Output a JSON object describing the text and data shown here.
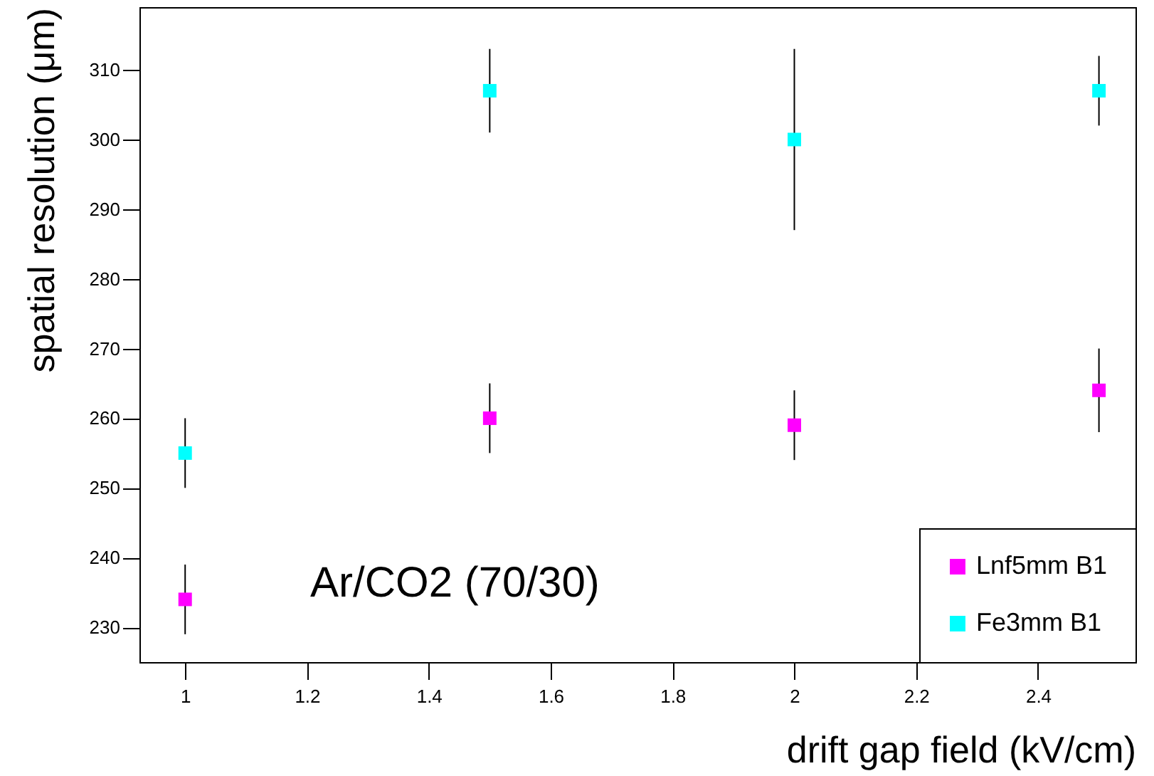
{
  "chart_data": {
    "type": "scatter",
    "xlabel": "drift gap field (kV/cm)",
    "ylabel": "spatial resolution (μm)",
    "x": [
      1,
      1.5,
      2,
      2.5
    ],
    "series": [
      {
        "name": "Lnf5mm B1",
        "color": "#ff00ff",
        "values": [
          234,
          260,
          259,
          264
        ],
        "errors": [
          [
            229,
            239
          ],
          [
            255,
            265
          ],
          [
            254,
            264
          ],
          [
            258,
            270
          ]
        ]
      },
      {
        "name": "Fe3mm  B1",
        "color": "#00ffff",
        "values": [
          255,
          307,
          300,
          307
        ],
        "errors": [
          [
            250,
            260
          ],
          [
            301,
            313
          ],
          [
            287,
            313
          ],
          [
            302,
            312
          ]
        ]
      }
    ],
    "xlim": [
      0.925,
      2.56
    ],
    "ylim": [
      225,
      319
    ],
    "xticks": [
      1,
      1.2,
      1.4,
      1.6,
      1.8,
      2,
      2.2,
      2.4
    ],
    "yticks": [
      230,
      240,
      250,
      260,
      270,
      280,
      290,
      300,
      310
    ],
    "marker": "square",
    "legend": "bottom right",
    "grid": false,
    "annotations": [
      "Ar/CO2 (70/30)"
    ]
  }
}
